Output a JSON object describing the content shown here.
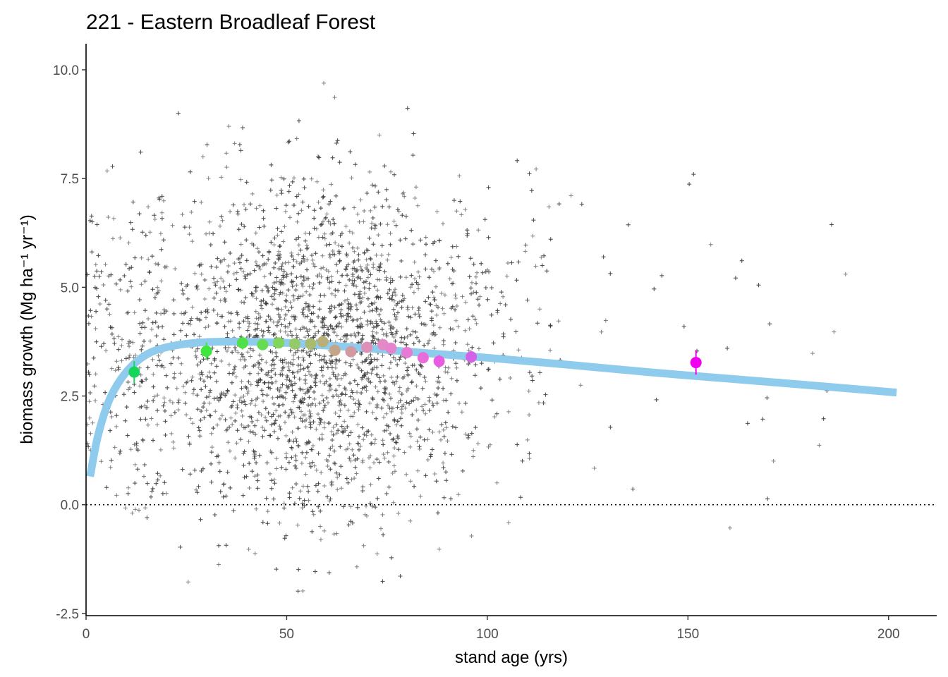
{
  "chart_data": {
    "type": "scatter",
    "title": "221 - Eastern Broadleaf Forest",
    "xlabel": "stand age (yrs)",
    "ylabel": "biomass growth (Mg ha⁻¹ yr⁻¹)",
    "xlim": [
      0,
      212
    ],
    "ylim": [
      -2.55,
      10.6
    ],
    "xticks": [
      0,
      50,
      100,
      150,
      200
    ],
    "xtick_labels": [
      "0",
      "50",
      "100",
      "150",
      "200"
    ],
    "yticks": [
      -2.5,
      0.0,
      2.5,
      5.0,
      7.5,
      10.0
    ],
    "ytick_labels": [
      "-2.5",
      "0.0",
      "2.5",
      "5.0",
      "7.5",
      "10.0"
    ],
    "reference_line": {
      "y": 0,
      "style": "dotted",
      "color": "#000000"
    },
    "grid": false,
    "legend": "none",
    "raw_points": {
      "name": "",
      "marker": "plus",
      "color": "#333333",
      "n_approx": 4000,
      "distribution": {
        "x_center": 58,
        "x_spread": 22,
        "x_min": 0,
        "x_max": 203,
        "y_center": 3.6,
        "y_spread": 1.9,
        "y_min": -2.55,
        "y_max": 10.6
      }
    },
    "fit_curve": {
      "color": "#8ecbec",
      "x": [
        1,
        3,
        6,
        10,
        15,
        20,
        25,
        30,
        35,
        40,
        50,
        60,
        70,
        80,
        90,
        100,
        120,
        140,
        160,
        180,
        202
      ],
      "y": [
        0.65,
        1.6,
        2.45,
        3.05,
        3.45,
        3.62,
        3.7,
        3.74,
        3.75,
        3.75,
        3.72,
        3.66,
        3.6,
        3.52,
        3.45,
        3.38,
        3.22,
        3.05,
        2.9,
        2.75,
        2.58
      ]
    },
    "binned_means": [
      {
        "x": 12,
        "y": 3.05,
        "err": 0.25,
        "color": "#13d65a"
      },
      {
        "x": 30,
        "y": 3.53,
        "err": 0.2,
        "color": "#3ee63e"
      },
      {
        "x": 39,
        "y": 3.72,
        "err": 0.15,
        "color": "#52e04a"
      },
      {
        "x": 44,
        "y": 3.68,
        "err": 0.12,
        "color": "#66dc52"
      },
      {
        "x": 48,
        "y": 3.72,
        "err": 0.1,
        "color": "#7fd65a"
      },
      {
        "x": 52,
        "y": 3.7,
        "err": 0.1,
        "color": "#95c96a"
      },
      {
        "x": 56,
        "y": 3.7,
        "err": 0.1,
        "color": "#a8bb70"
      },
      {
        "x": 59,
        "y": 3.75,
        "err": 0.1,
        "color": "#b8b078"
      },
      {
        "x": 62,
        "y": 3.55,
        "err": 0.1,
        "color": "#c5a58a"
      },
      {
        "x": 66,
        "y": 3.52,
        "err": 0.1,
        "color": "#d09aa0"
      },
      {
        "x": 70,
        "y": 3.62,
        "err": 0.1,
        "color": "#dc90b8"
      },
      {
        "x": 74,
        "y": 3.68,
        "err": 0.1,
        "color": "#e38ac4"
      },
      {
        "x": 76,
        "y": 3.6,
        "err": 0.1,
        "color": "#e583cc"
      },
      {
        "x": 80,
        "y": 3.5,
        "err": 0.1,
        "color": "#e67ad4"
      },
      {
        "x": 84,
        "y": 3.38,
        "err": 0.12,
        "color": "#e86cdc"
      },
      {
        "x": 88,
        "y": 3.3,
        "err": 0.14,
        "color": "#e85ce2"
      },
      {
        "x": 96,
        "y": 3.4,
        "err": 0.14,
        "color": "#d462e8"
      },
      {
        "x": 152,
        "y": 3.27,
        "err": 0.28,
        "color": "#f000ee"
      }
    ]
  }
}
